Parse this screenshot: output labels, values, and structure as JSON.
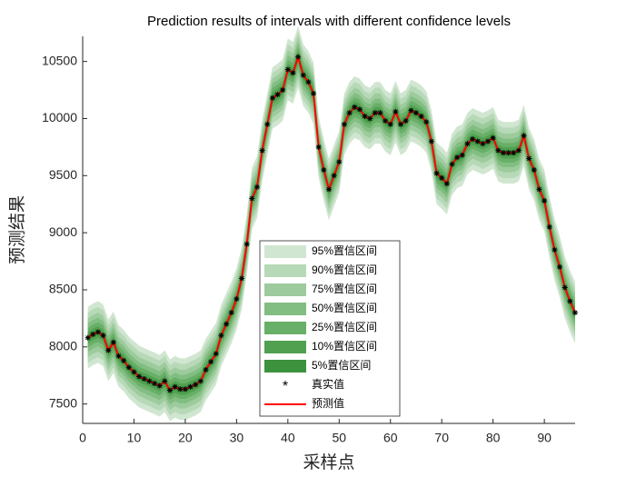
{
  "chart_data": {
    "type": "line",
    "title": "Prediction results of intervals with different confidence levels",
    "xlabel": "采样点",
    "ylabel": "预测结果",
    "x": [
      1,
      2,
      3,
      4,
      5,
      6,
      7,
      8,
      9,
      10,
      11,
      12,
      13,
      14,
      15,
      16,
      17,
      18,
      19,
      20,
      21,
      22,
      23,
      24,
      25,
      26,
      27,
      28,
      29,
      30,
      31,
      32,
      33,
      34,
      35,
      36,
      37,
      38,
      39,
      40,
      41,
      42,
      43,
      44,
      45,
      46,
      47,
      48,
      49,
      50,
      51,
      52,
      53,
      54,
      55,
      56,
      57,
      58,
      59,
      60,
      61,
      62,
      63,
      64,
      65,
      66,
      67,
      68,
      69,
      70,
      71,
      72,
      73,
      74,
      75,
      76,
      77,
      78,
      79,
      80,
      81,
      82,
      83,
      84,
      85,
      86,
      87,
      88,
      89,
      90,
      91,
      92,
      93,
      94,
      95,
      96
    ],
    "xlim": [
      0,
      96
    ],
    "xticks": [
      0,
      10,
      20,
      30,
      40,
      50,
      60,
      70,
      80,
      90
    ],
    "ylim": [
      7330,
      10720
    ],
    "yticks": [
      7500,
      8000,
      8500,
      9000,
      9500,
      10000,
      10500
    ],
    "series": [
      {
        "name": "95%置信区间",
        "color": "#d0e6d0",
        "halfwidth": 270
      },
      {
        "name": "90%置信区间",
        "color": "#b7d9b7",
        "halfwidth": 220
      },
      {
        "name": "75%置信区间",
        "color": "#9dcb9d",
        "halfwidth": 170
      },
      {
        "name": "50%置信区间",
        "color": "#82bd82",
        "halfwidth": 125
      },
      {
        "name": "25%置信区间",
        "color": "#68af68",
        "halfwidth": 85
      },
      {
        "name": "10%置信区间",
        "color": "#50a050",
        "halfwidth": 50
      },
      {
        "name": "5%置信区间",
        "color": "#3d923d",
        "halfwidth": 25
      },
      {
        "name": "真实值",
        "color": "#000000",
        "values": [
          8080,
          8110,
          8130,
          8100,
          7970,
          8040,
          7920,
          7880,
          7820,
          7780,
          7740,
          7720,
          7700,
          7680,
          7660,
          7700,
          7620,
          7650,
          7630,
          7630,
          7650,
          7670,
          7700,
          7800,
          7870,
          7940,
          8100,
          8200,
          8300,
          8420,
          8600,
          8900,
          9300,
          9400,
          9720,
          9950,
          10180,
          10210,
          10250,
          10430,
          10400,
          10540,
          10380,
          10320,
          10220,
          9750,
          9550,
          9380,
          9500,
          9620,
          9950,
          10050,
          10100,
          10080,
          10020,
          10000,
          10050,
          10050,
          9980,
          9950,
          10060,
          9950,
          9980,
          10070,
          10050,
          10020,
          9970,
          9800,
          9520,
          9480,
          9430,
          9600,
          9660,
          9680,
          9780,
          9820,
          9800,
          9780,
          9800,
          9830,
          9720,
          9700,
          9700,
          9700,
          9720,
          9850,
          9650,
          9550,
          9380,
          9280,
          9050,
          8850,
          8700,
          8520,
          8400,
          8300
        ]
      },
      {
        "name": "预测值",
        "color": "#ff0000",
        "values": [
          8080,
          8110,
          8130,
          8100,
          7970,
          8040,
          7920,
          7880,
          7820,
          7780,
          7740,
          7720,
          7700,
          7680,
          7660,
          7700,
          7620,
          7650,
          7630,
          7630,
          7650,
          7670,
          7700,
          7800,
          7870,
          7940,
          8100,
          8200,
          8300,
          8420,
          8600,
          8900,
          9300,
          9400,
          9720,
          9950,
          10180,
          10210,
          10250,
          10430,
          10400,
          10540,
          10380,
          10320,
          10220,
          9750,
          9550,
          9380,
          9500,
          9620,
          9950,
          10050,
          10100,
          10080,
          10020,
          10000,
          10050,
          10050,
          9980,
          9950,
          10060,
          9950,
          9980,
          10070,
          10050,
          10020,
          9970,
          9800,
          9520,
          9480,
          9430,
          9600,
          9660,
          9680,
          9780,
          9820,
          9800,
          9780,
          9800,
          9830,
          9720,
          9700,
          9700,
          9700,
          9720,
          9850,
          9650,
          9550,
          9380,
          9280,
          9050,
          8850,
          8700,
          8520,
          8400,
          8300
        ]
      }
    ]
  }
}
